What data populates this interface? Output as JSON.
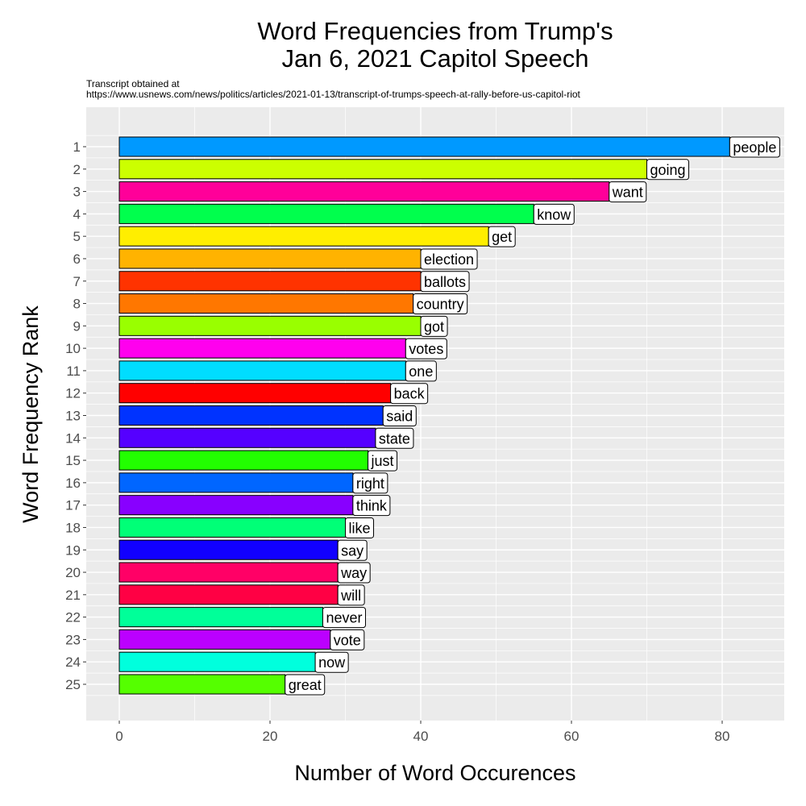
{
  "chart_data": {
    "type": "bar",
    "orientation": "horizontal",
    "title": [
      "Word Frequencies from Trump's",
      "Jan 6, 2021 Capitol Speech"
    ],
    "subtitle": [
      "Transcript obtained at",
      "https://www.usnews.com/news/politics/articles/2021-01-13/transcript-of-trumps-speech-at-rally-before-us-capitol-riot"
    ],
    "xlabel": "Number of Word Occurences",
    "ylabel": "Word Frequency Rank",
    "xlim": [
      -4.5,
      88
    ],
    "xticks": [
      0,
      20,
      40,
      60,
      80
    ],
    "grid": true,
    "categories": [
      "1",
      "2",
      "3",
      "4",
      "5",
      "6",
      "7",
      "8",
      "9",
      "10",
      "11",
      "12",
      "13",
      "14",
      "15",
      "16",
      "17",
      "18",
      "19",
      "20",
      "21",
      "22",
      "23",
      "24",
      "25"
    ],
    "words": [
      "people",
      "going",
      "want",
      "know",
      "get",
      "election",
      "ballots",
      "country",
      "got",
      "votes",
      "one",
      "back",
      "said",
      "state",
      "just",
      "right",
      "think",
      "like",
      "say",
      "way",
      "will",
      "never",
      "vote",
      "now",
      "great"
    ],
    "values": [
      81,
      70,
      65,
      55,
      49,
      40,
      40,
      39,
      40,
      38,
      38,
      36,
      35,
      34,
      33,
      31,
      31,
      30,
      29,
      29,
      29,
      27,
      28,
      26,
      22
    ],
    "colors": [
      "#0099FF",
      "#CCFF00",
      "#FF0099",
      "#00FF4D",
      "#FFEE00",
      "#FFB300",
      "#FF3300",
      "#FF7700",
      "#99FF00",
      "#FF00EE",
      "#00DDFF",
      "#FF0000",
      "#0033FF",
      "#5500FF",
      "#22FF00",
      "#0066FF",
      "#8800FF",
      "#00FF77",
      "#1100FF",
      "#FF0066",
      "#FF0044",
      "#00FF99",
      "#BB00FF",
      "#00FFDD",
      "#55FF00"
    ]
  }
}
